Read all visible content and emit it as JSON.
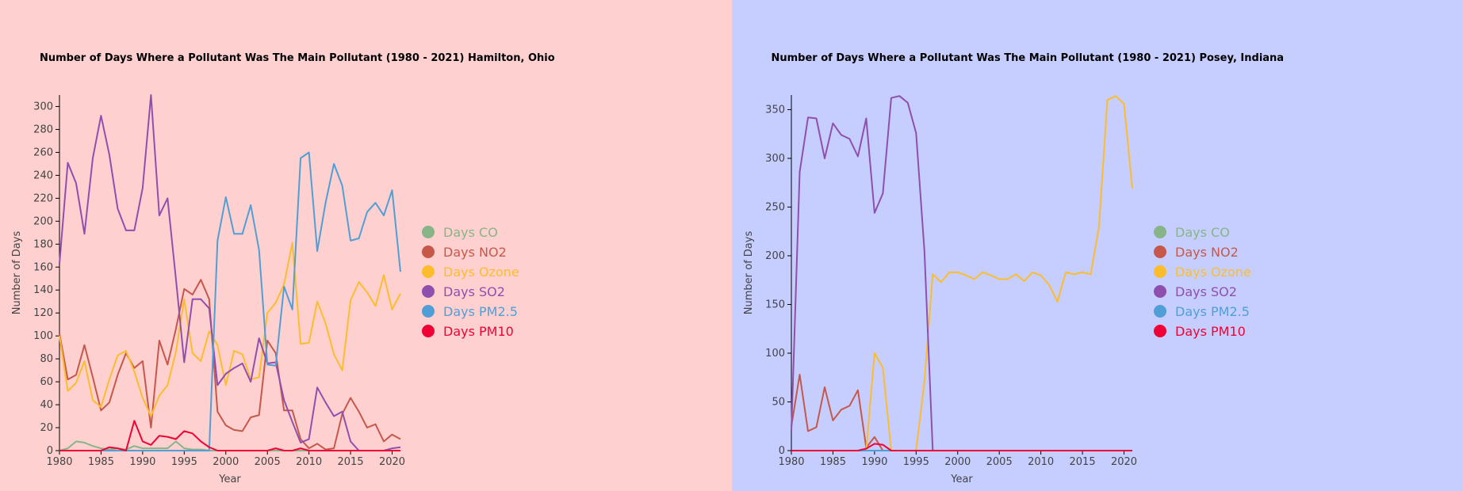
{
  "colors": {
    "Days CO": "#87b587",
    "Days NO2": "#c5584a",
    "Days Ozone": "#fbbd2b",
    "Days SO2": "#8f4fae",
    "Days PM2.5": "#4f9fd6",
    "Days PM10": "#ef0336"
  },
  "chart_data": [
    {
      "type": "line",
      "title": "Number of Days Where a Pollutant Was The Main Pollutant (1980 - 2021) Hamilton, Ohio",
      "xlabel": "Year",
      "ylabel": "Number of Days",
      "xlim": [
        1980,
        2021
      ],
      "ylim": [
        0,
        310
      ],
      "xticks": [
        1980,
        1985,
        1990,
        1995,
        2000,
        2005,
        2010,
        2015,
        2020
      ],
      "yticks": [
        0,
        20,
        40,
        60,
        80,
        100,
        120,
        140,
        160,
        180,
        200,
        220,
        240,
        260,
        280,
        300
      ],
      "legend_position": "right",
      "x": [
        1980,
        1981,
        1982,
        1983,
        1984,
        1985,
        1986,
        1987,
        1988,
        1989,
        1990,
        1991,
        1992,
        1993,
        1994,
        1995,
        1996,
        1997,
        1998,
        1999,
        2000,
        2001,
        2002,
        2003,
        2004,
        2005,
        2006,
        2007,
        2008,
        2009,
        2010,
        2011,
        2012,
        2013,
        2014,
        2015,
        2016,
        2017,
        2018,
        2019,
        2020,
        2021
      ],
      "series": [
        {
          "name": "Days CO",
          "values": [
            0,
            2,
            8,
            7,
            4,
            2,
            1,
            2,
            1,
            4,
            2,
            2,
            2,
            2,
            8,
            2,
            1,
            1,
            0,
            0,
            0,
            0,
            0,
            0,
            0,
            0,
            0,
            0,
            0,
            0,
            0,
            0,
            0,
            0,
            0,
            0,
            0,
            0,
            0,
            0,
            0,
            0
          ]
        },
        {
          "name": "Days NO2",
          "values": [
            102,
            62,
            66,
            92,
            64,
            35,
            42,
            66,
            85,
            72,
            78,
            20,
            96,
            75,
            106,
            141,
            136,
            149,
            132,
            34,
            22,
            18,
            17,
            29,
            31,
            96,
            85,
            35,
            35,
            10,
            2,
            6,
            1,
            2,
            32,
            46,
            34,
            20,
            23,
            8,
            14,
            10
          ]
        },
        {
          "name": "Days Ozone",
          "values": [
            100,
            52,
            59,
            78,
            44,
            38,
            62,
            83,
            87,
            69,
            46,
            30,
            48,
            57,
            86,
            132,
            85,
            78,
            104,
            92,
            57,
            87,
            84,
            62,
            64,
            120,
            129,
            145,
            181,
            93,
            94,
            130,
            111,
            84,
            70,
            131,
            147,
            138,
            126,
            153,
            123,
            137
          ]
        },
        {
          "name": "Days SO2",
          "values": [
            163,
            251,
            233,
            189,
            255,
            292,
            258,
            211,
            192,
            192,
            229,
            310,
            205,
            220,
            150,
            77,
            132,
            132,
            124,
            57,
            67,
            72,
            76,
            60,
            98,
            76,
            77,
            44,
            25,
            7,
            10,
            55,
            42,
            30,
            34,
            8,
            0,
            0,
            0,
            0,
            2,
            3
          ]
        },
        {
          "name": "Days PM2.5",
          "values": [
            0,
            0,
            0,
            0,
            0,
            0,
            0,
            0,
            0,
            0,
            0,
            0,
            0,
            0,
            0,
            0,
            0,
            0,
            0,
            183,
            221,
            189,
            189,
            214,
            175,
            75,
            74,
            143,
            123,
            255,
            260,
            174,
            216,
            250,
            231,
            183,
            185,
            208,
            216,
            205,
            227,
            156
          ]
        },
        {
          "name": "Days PM10",
          "values": [
            0,
            0,
            0,
            0,
            0,
            0,
            3,
            2,
            0,
            26,
            8,
            5,
            13,
            12,
            10,
            17,
            15,
            8,
            3,
            0,
            0,
            0,
            0,
            0,
            0,
            0,
            2,
            0,
            0,
            2,
            0,
            0,
            0,
            0,
            0,
            0,
            0,
            0,
            0,
            0,
            0,
            0
          ]
        }
      ]
    },
    {
      "type": "line",
      "title": "Number of Days Where a Pollutant Was The Main Pollutant (1980 - 2021) Posey, Indiana",
      "xlabel": "Year",
      "ylabel": "Number of Days",
      "xlim": [
        1980,
        2021
      ],
      "ylim": [
        0,
        365
      ],
      "xticks": [
        1980,
        1985,
        1990,
        1995,
        2000,
        2005,
        2010,
        2015,
        2020
      ],
      "yticks": [
        0,
        50,
        100,
        150,
        200,
        250,
        300,
        350
      ],
      "legend_position": "right",
      "x": [
        1980,
        1981,
        1982,
        1983,
        1984,
        1985,
        1986,
        1987,
        1988,
        1989,
        1990,
        1991,
        1992,
        1993,
        1994,
        1995,
        1996,
        1997,
        1998,
        1999,
        2000,
        2001,
        2002,
        2003,
        2004,
        2005,
        2006,
        2007,
        2008,
        2009,
        2010,
        2011,
        2012,
        2013,
        2014,
        2015,
        2016,
        2017,
        2018,
        2019,
        2020,
        2021
      ],
      "series": [
        {
          "name": "Days CO",
          "values": [
            0,
            0,
            0,
            0,
            0,
            0,
            0,
            0,
            0,
            0,
            0,
            0,
            0,
            0,
            0,
            0,
            0,
            0,
            0,
            0,
            0,
            0,
            0,
            0,
            0,
            0,
            0,
            0,
            0,
            0,
            0,
            0,
            0,
            0,
            0,
            0,
            0,
            0,
            0,
            0,
            0,
            0
          ]
        },
        {
          "name": "Days NO2",
          "values": [
            25,
            78,
            20,
            24,
            65,
            31,
            42,
            46,
            62,
            3,
            14,
            0,
            0,
            0,
            0,
            0,
            0,
            0,
            0,
            0,
            0,
            0,
            0,
            0,
            0,
            0,
            0,
            0,
            0,
            0,
            0,
            0,
            0,
            0,
            0,
            0,
            0,
            0,
            0,
            0,
            0,
            0
          ]
        },
        {
          "name": "Days Ozone",
          "values": [
            0,
            0,
            0,
            0,
            0,
            0,
            0,
            0,
            0,
            0,
            100,
            85,
            0,
            0,
            0,
            0,
            71,
            181,
            173,
            183,
            183,
            180,
            176,
            183,
            180,
            176,
            176,
            181,
            174,
            183,
            180,
            170,
            153,
            183,
            181,
            183,
            181,
            230,
            360,
            364,
            356,
            269
          ]
        },
        {
          "name": "Days SO2",
          "values": [
            20,
            286,
            342,
            341,
            300,
            336,
            324,
            320,
            302,
            341,
            244,
            264,
            362,
            364,
            357,
            326,
            205,
            0,
            0,
            0,
            0,
            0,
            0,
            0,
            0,
            0,
            0,
            0,
            0,
            0,
            0,
            0,
            0,
            0,
            0,
            0,
            0,
            0,
            0,
            0,
            0,
            0
          ]
        },
        {
          "name": "Days PM2.5",
          "values": [
            0,
            0,
            0,
            0,
            0,
            0,
            0,
            0,
            0,
            0,
            0,
            0,
            0,
            0,
            0,
            0,
            0,
            0,
            0,
            0,
            0,
            0,
            0,
            0,
            0,
            0,
            0,
            0,
            0,
            0,
            0,
            0,
            0,
            0,
            0,
            0,
            0,
            0,
            0,
            0,
            0,
            0
          ]
        },
        {
          "name": "Days PM10",
          "values": [
            0,
            0,
            0,
            0,
            0,
            0,
            0,
            0,
            0,
            2,
            7,
            6,
            0,
            0,
            0,
            0,
            0,
            0,
            0,
            0,
            0,
            0,
            0,
            0,
            0,
            0,
            0,
            0,
            0,
            0,
            0,
            0,
            0,
            0,
            0,
            0,
            0,
            0,
            0,
            0,
            0,
            0
          ]
        }
      ]
    }
  ]
}
